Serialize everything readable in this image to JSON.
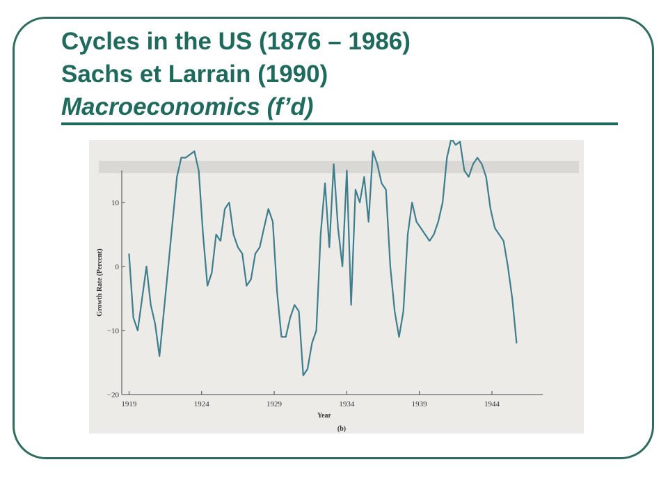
{
  "slide": {
    "title_line1": "Cycles in the US (1876 – 1986)",
    "title_line2": "Sachs et Larrain (1990)",
    "title_line3": "Macroeconomics (f’d)",
    "accent": "#1f6a5c"
  },
  "chart_data": {
    "type": "line",
    "title": "",
    "xlabel": "Year",
    "ylabel": "Growth Rate (Percent)",
    "panel_label": "(b)",
    "xlim": [
      1918.5,
      1947.5
    ],
    "ylim": [
      -20,
      15
    ],
    "x_ticks": [
      1919,
      1924,
      1929,
      1934,
      1939,
      1944
    ],
    "y_ticks": [
      -20,
      -10,
      0,
      10
    ],
    "grid": false,
    "line_color": "#3d7d8c",
    "series": [
      {
        "x": [
          1919.0,
          1919.3,
          1919.6,
          1919.9,
          1920.2,
          1920.5,
          1920.8,
          1921.1,
          1921.4,
          1921.7,
          1922.0,
          1922.3,
          1922.6,
          1922.9,
          1923.2,
          1923.5,
          1923.8,
          1924.1,
          1924.4,
          1924.7,
          1925.0,
          1925.3,
          1925.6,
          1925.9,
          1926.2,
          1926.5,
          1926.8,
          1927.1,
          1927.4,
          1927.7,
          1928.0,
          1928.3,
          1928.6,
          1928.9,
          1929.2,
          1929.5,
          1929.8,
          1930.1,
          1930.4,
          1930.7,
          1931.0,
          1931.3,
          1931.6,
          1931.9,
          1932.2,
          1932.5,
          1932.8,
          1933.1,
          1933.4,
          1933.7,
          1934.0,
          1934.3,
          1934.6,
          1934.9,
          1935.2,
          1935.5,
          1935.8,
          1936.1,
          1936.4,
          1936.7,
          1937.0,
          1937.3,
          1937.6,
          1937.9,
          1938.2,
          1938.5,
          1938.8,
          1939.1,
          1939.4,
          1939.7,
          1940.0,
          1940.3,
          1940.6,
          1940.9,
          1941.2,
          1941.5,
          1941.8,
          1942.1,
          1942.4,
          1942.7,
          1943.0,
          1943.3,
          1943.6,
          1943.9,
          1944.2,
          1944.5,
          1944.8,
          1945.1,
          1945.4,
          1945.7
        ],
        "y": [
          2,
          -8,
          -10,
          -5,
          0,
          -6,
          -9,
          -14,
          -7,
          0,
          7,
          14,
          17,
          17,
          17.5,
          18,
          15,
          5,
          -3,
          -1,
          5,
          4,
          9,
          10,
          5,
          3,
          2,
          -3,
          -2,
          2,
          3,
          6,
          9,
          7,
          -4,
          -11,
          -11,
          -8,
          -6,
          -7,
          -17,
          -16,
          -12,
          -10,
          5,
          13,
          3,
          16,
          6,
          0,
          15,
          -6,
          12,
          10,
          14,
          7,
          18,
          16,
          13,
          12,
          0,
          -7,
          -11,
          -7,
          5,
          10,
          7,
          6,
          5,
          4,
          5,
          7,
          10,
          17,
          20,
          19,
          19.5,
          15,
          14,
          16,
          17,
          16,
          14,
          9,
          6,
          5,
          4,
          0,
          -5,
          -12
        ]
      }
    ]
  }
}
